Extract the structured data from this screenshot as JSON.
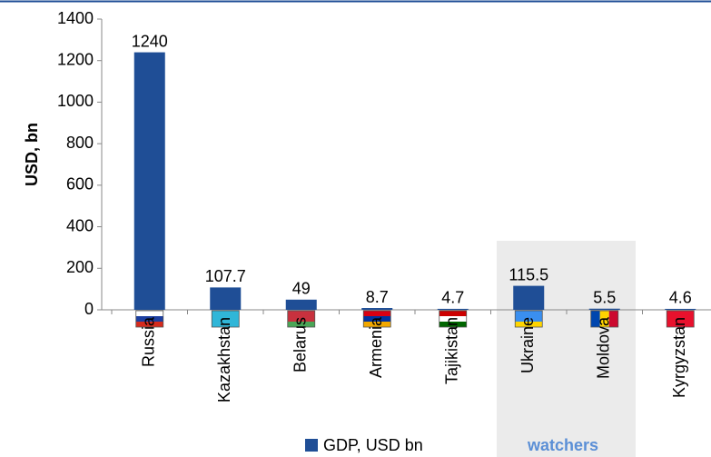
{
  "chart_data": {
    "type": "bar",
    "ylabel": "USD, bn",
    "categories": [
      "Russia",
      "Kazakhstan",
      "Belarus",
      "Armenia",
      "Tajikistan",
      "Ukraine",
      "Moldova",
      "Kyrgyzstan"
    ],
    "series": [
      {
        "name": "GDP, USD bn",
        "color": "#1f4e96",
        "values": [
          1240,
          107.7,
          49,
          8.7,
          4.7,
          115.5,
          5.5,
          4.6
        ]
      }
    ],
    "ylim": [
      0,
      1400
    ],
    "yticks": [
      0,
      200,
      400,
      600,
      800,
      1000,
      1200,
      1400
    ],
    "annotation": "watchers",
    "legend": "bottom"
  }
}
